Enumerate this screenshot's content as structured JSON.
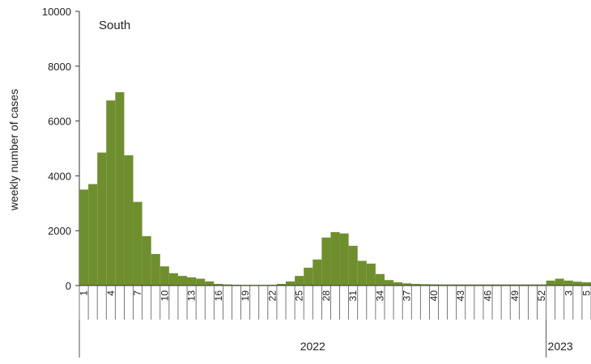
{
  "chart_data": {
    "type": "bar",
    "panel_label": "South",
    "ylabel": "weekly number of cases",
    "ylim": [
      0,
      10000
    ],
    "yticks": [
      0,
      2000,
      4000,
      6000,
      8000,
      10000
    ],
    "ytick_labels": [
      "0",
      "2000",
      "4000",
      "6000",
      "8000",
      "10000"
    ],
    "bar_color": "#6f8f2f",
    "weeks": [
      1,
      2,
      3,
      4,
      5,
      6,
      7,
      8,
      9,
      10,
      11,
      12,
      13,
      14,
      15,
      16,
      17,
      18,
      19,
      20,
      21,
      22,
      23,
      24,
      25,
      26,
      27,
      28,
      29,
      30,
      31,
      32,
      33,
      34,
      35,
      36,
      37,
      38,
      39,
      40,
      41,
      42,
      43,
      44,
      45,
      46,
      47,
      48,
      49,
      50,
      51,
      52,
      1,
      2,
      3,
      4,
      5
    ],
    "values": [
      3500,
      3700,
      4850,
      6750,
      7050,
      4750,
      3050,
      1800,
      1150,
      700,
      450,
      350,
      300,
      250,
      150,
      60,
      40,
      30,
      25,
      25,
      25,
      30,
      60,
      150,
      350,
      650,
      950,
      1750,
      1950,
      1900,
      1450,
      900,
      800,
      420,
      200,
      120,
      80,
      60,
      50,
      45,
      40,
      40,
      40,
      40,
      40,
      40,
      40,
      40,
      40,
      40,
      40,
      40,
      180,
      250,
      180,
      140,
      120
    ],
    "tick_labels": [
      {
        "index": 0,
        "label": "1"
      },
      {
        "index": 3,
        "label": "4"
      },
      {
        "index": 6,
        "label": "7"
      },
      {
        "index": 9,
        "label": "10"
      },
      {
        "index": 12,
        "label": "13"
      },
      {
        "index": 15,
        "label": "16"
      },
      {
        "index": 18,
        "label": "19"
      },
      {
        "index": 21,
        "label": "22"
      },
      {
        "index": 24,
        "label": "25"
      },
      {
        "index": 27,
        "label": "28"
      },
      {
        "index": 30,
        "label": "31"
      },
      {
        "index": 33,
        "label": "34"
      },
      {
        "index": 36,
        "label": "37"
      },
      {
        "index": 39,
        "label": "40"
      },
      {
        "index": 42,
        "label": "43"
      },
      {
        "index": 45,
        "label": "46"
      },
      {
        "index": 48,
        "label": "49"
      },
      {
        "index": 51,
        "label": "52"
      },
      {
        "index": 54,
        "label": "3"
      },
      {
        "index": 56,
        "label": "5"
      }
    ],
    "year_groups": [
      {
        "label": "2022",
        "start": 0,
        "end": 51
      },
      {
        "label": "2023",
        "start": 52,
        "end": 56
      }
    ],
    "grid": false,
    "legend": "none"
  }
}
